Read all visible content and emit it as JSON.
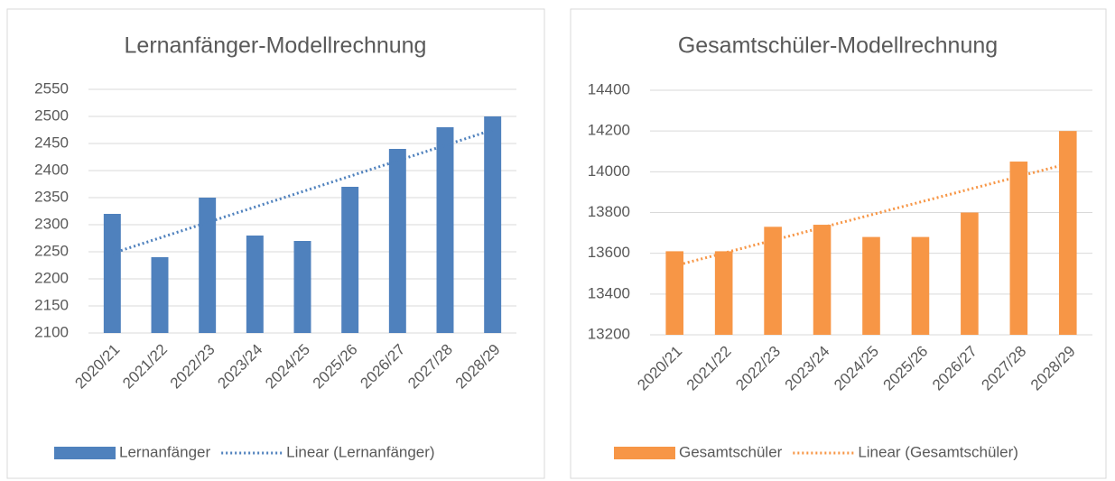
{
  "chart_data": [
    {
      "type": "bar",
      "title": "Lernanfänger-Modellrechnung",
      "categories": [
        "2020/21",
        "2021/22",
        "2022/23",
        "2023/24",
        "2024/25",
        "2025/26",
        "2026/27",
        "2027/28",
        "2028/29"
      ],
      "series": [
        {
          "name": "Lernanfänger",
          "color": "#4f81bd",
          "values": [
            2320,
            2240,
            2350,
            2280,
            2270,
            2370,
            2440,
            2480,
            2500
          ]
        },
        {
          "name": "Linear (Lernanfänger)",
          "color": "#4f81bd",
          "type": "line",
          "dotted": true,
          "values": [
            2247.1,
            2275.6,
            2304.1,
            2332.6,
            2361.1,
            2389.6,
            2418.1,
            2446.6,
            2475.1
          ]
        }
      ],
      "ylim": [
        2100,
        2550
      ],
      "yticks": [
        2100,
        2150,
        2200,
        2250,
        2300,
        2350,
        2400,
        2450,
        2500,
        2550
      ],
      "grid": true,
      "legend": "bottom"
    },
    {
      "type": "bar",
      "title": "Gesamtschüler-Modellrechnung",
      "categories": [
        "2020/21",
        "2021/22",
        "2022/23",
        "2023/24",
        "2024/25",
        "2025/26",
        "2026/27",
        "2027/28",
        "2028/29"
      ],
      "series": [
        {
          "name": "Gesamtschüler",
          "color": "#f79646",
          "values": [
            13610,
            13610,
            13730,
            13740,
            13680,
            13680,
            13800,
            14050,
            14200
          ]
        },
        {
          "name": "Linear (Gesamtschüler)",
          "color": "#f79646",
          "type": "line",
          "dotted": true,
          "values": [
            13538.2,
            13600.9,
            13663.6,
            13726.2,
            13788.9,
            13851.6,
            13914.2,
            13976.9,
            14039.6
          ]
        }
      ],
      "ylim": [
        13200,
        14400
      ],
      "yticks": [
        13200,
        13400,
        13600,
        13800,
        14000,
        14200,
        14400
      ],
      "grid": true,
      "legend": "bottom"
    }
  ]
}
